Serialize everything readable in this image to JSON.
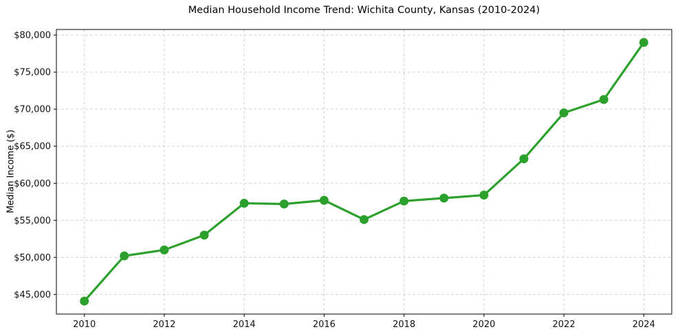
{
  "chart_data": {
    "type": "line",
    "title": "Median Household Income Trend: Wichita County, Kansas (2010-2024)",
    "xlabel": "",
    "ylabel": "Median Income ($)",
    "x": [
      2010,
      2011,
      2012,
      2013,
      2014,
      2015,
      2016,
      2017,
      2018,
      2019,
      2020,
      2021,
      2022,
      2023,
      2024
    ],
    "values": [
      44100,
      50200,
      51000,
      53000,
      57300,
      57200,
      57700,
      55100,
      57600,
      58000,
      58400,
      63300,
      69500,
      71300,
      79000
    ],
    "x_ticks": [
      2010,
      2012,
      2014,
      2016,
      2018,
      2020,
      2022,
      2024
    ],
    "x_tick_labels": [
      "2010",
      "2012",
      "2014",
      "2016",
      "2018",
      "2020",
      "2022",
      "2024"
    ],
    "y_ticks": [
      45000,
      50000,
      55000,
      60000,
      65000,
      70000,
      75000,
      80000
    ],
    "y_tick_labels": [
      "$45,000",
      "$50,000",
      "$55,000",
      "$60,000",
      "$65,000",
      "$70,000",
      "$75,000",
      "$80,000"
    ],
    "xlim": [
      2009.3,
      2024.7
    ],
    "ylim": [
      42350,
      80750
    ],
    "grid": "both",
    "grid_style": "dashed",
    "legend": "none",
    "marker": "circle",
    "line_color": "#2ca02c",
    "grid_color": "#d2d2d2",
    "axis_color": "#000000",
    "background_color": "#ffffff"
  }
}
